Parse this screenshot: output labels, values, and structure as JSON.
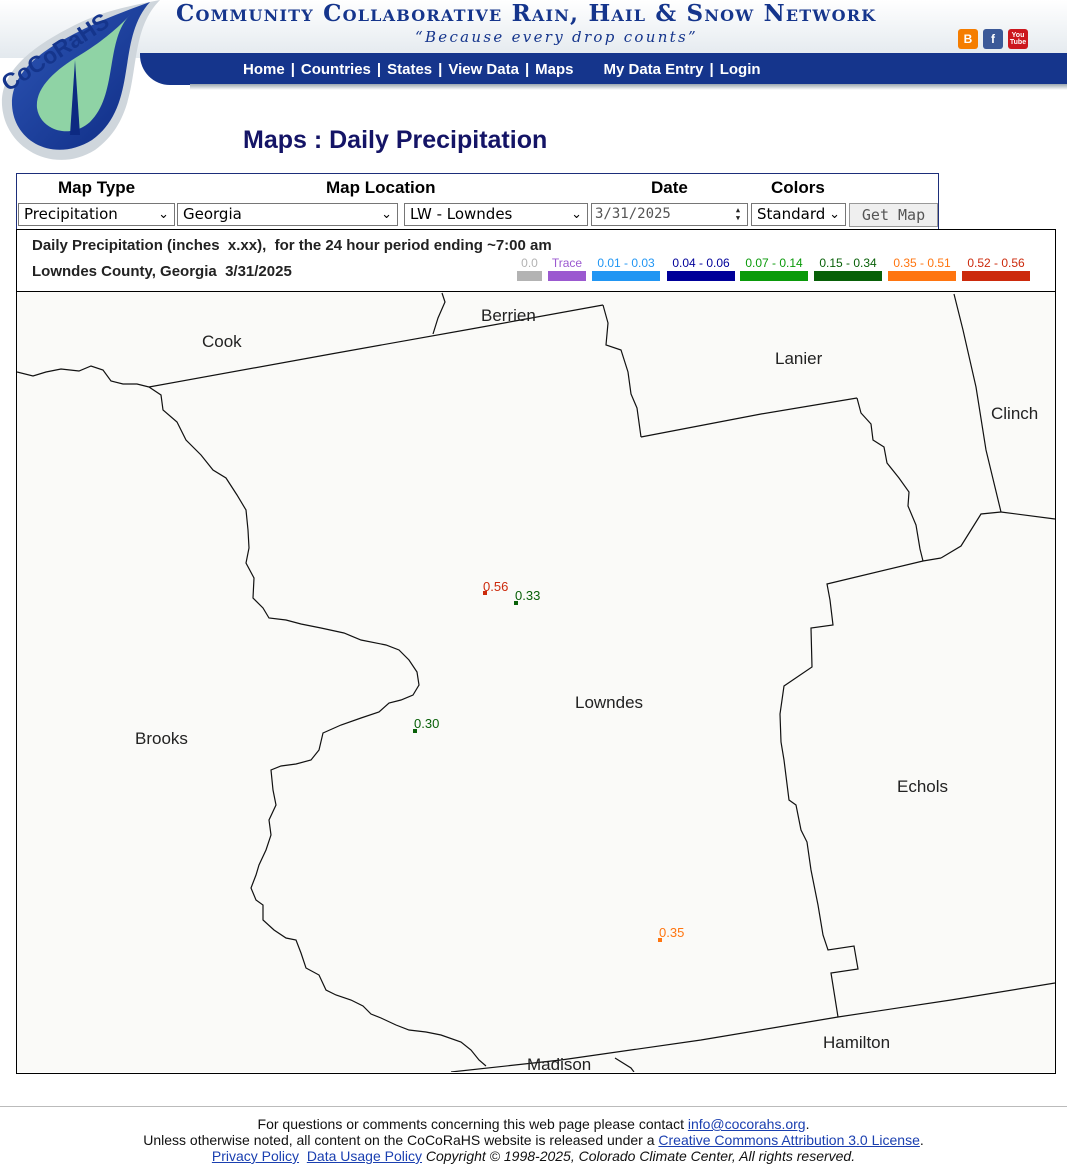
{
  "header": {
    "logo_text": "CoCoRaHS",
    "site_title": "Community Collaborative Rain, Hail & Snow Network",
    "tagline": "“Because every drop counts”",
    "social": [
      {
        "name": "blogger-icon",
        "glyph": "B",
        "color": "#f57d00"
      },
      {
        "name": "facebook-icon",
        "glyph": "f",
        "color": "#3b5998"
      },
      {
        "name": "youtube-icon",
        "glyph": "You\nTube",
        "color": "#cc181e"
      }
    ],
    "nav": {
      "home": "Home",
      "countries": "Countries",
      "states": "States",
      "view_data": "View Data",
      "maps": "Maps",
      "my_data_entry": "My Data Entry",
      "login": "Login",
      "separator": "|"
    }
  },
  "page_title": "Maps : Daily Precipitation",
  "form": {
    "labels": {
      "map_type": "Map Type",
      "map_location": "Map Location",
      "date": "Date",
      "colors": "Colors"
    },
    "map_type": "Precipitation",
    "state": "Georgia",
    "county": "LW - Lowndes",
    "date": "3/31/2025",
    "colors": "Standard",
    "get_map": "Get Map"
  },
  "legend": {
    "title": "Daily Precipitation (inches  x.xx),  for the 24 hour period ending ~7:00 am",
    "subtitle": "Lowndes County, Georgia  3/31/2025",
    "bins": [
      {
        "label": "0.0",
        "color": "#b3b3b3",
        "text_color": "#b3b3b3"
      },
      {
        "label": "Trace",
        "color": "#9b59d0",
        "text_color": "#9b59d0"
      },
      {
        "label": "0.01 - 0.03",
        "color": "#2196f3",
        "text_color": "#2196f3"
      },
      {
        "label": "0.04 - 0.06",
        "color": "#000099",
        "text_color": "#000099"
      },
      {
        "label": "0.07 - 0.14",
        "color": "#0a9a0a",
        "text_color": "#0a9a0a"
      },
      {
        "label": "0.15 - 0.34",
        "color": "#086008",
        "text_color": "#086008"
      },
      {
        "label": "0.35 - 0.51",
        "color": "#ff7510",
        "text_color": "#ff7510"
      },
      {
        "label": "0.52 - 0.56",
        "color": "#cc2a0c",
        "text_color": "#cc2a0c"
      }
    ]
  },
  "map": {
    "counties": [
      "Berrien",
      "Cook",
      "Lanier",
      "Clinch",
      "Lowndes",
      "Brooks",
      "Echols",
      "Hamilton",
      "Madison"
    ],
    "observations": [
      {
        "value": "0.56",
        "color": "#cc2a0c"
      },
      {
        "value": "0.33",
        "color": "#086008"
      },
      {
        "value": "0.30",
        "color": "#086008"
      },
      {
        "value": "0.35",
        "color": "#ff7510"
      }
    ]
  },
  "footer": {
    "contact_text": "For questions or comments concerning this web page please contact ",
    "contact_email": "info@cocorahs.org",
    "period": ".",
    "license_text": "Unless otherwise noted, all content on the CoCoRaHS website is released under a ",
    "license_link": "Creative Commons Attribution 3.0 License",
    "privacy": "Privacy Policy",
    "data_usage": "Data Usage Policy",
    "copyright": "Copyright © 1998-2025, Colorado Climate Center, All rights reserved."
  }
}
